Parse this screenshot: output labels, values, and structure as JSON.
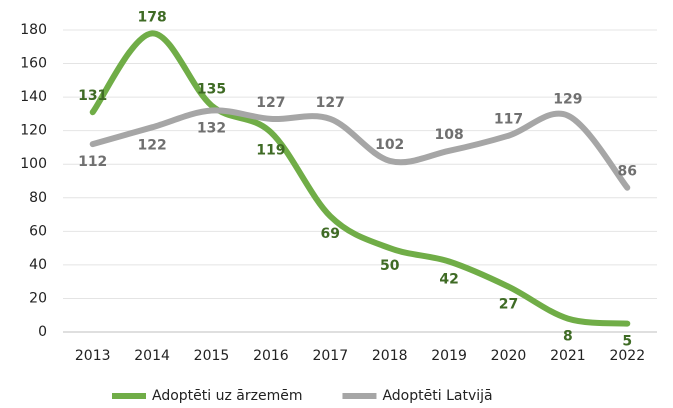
{
  "chart_data": {
    "type": "line",
    "categories": [
      "2013",
      "2014",
      "2015",
      "2016",
      "2017",
      "2018",
      "2019",
      "2020",
      "2021",
      "2022"
    ],
    "series": [
      {
        "name": "Adoptēti uz ārzemēm",
        "color": "#70ad47",
        "label_color": "#3f6b25",
        "values": [
          131,
          178,
          135,
          119,
          69,
          50,
          42,
          27,
          8,
          5
        ]
      },
      {
        "name": "Adoptēti Latvijā",
        "color": "#a6a6a6",
        "label_color": "#707070",
        "values": [
          112,
          122,
          132,
          127,
          127,
          102,
          108,
          117,
          129,
          86
        ]
      }
    ],
    "ylim": [
      0,
      180
    ],
    "yticks": [
      0,
      20,
      40,
      60,
      80,
      100,
      120,
      140,
      160,
      180
    ],
    "grid": true,
    "smooth": true,
    "legend": "bottom"
  }
}
